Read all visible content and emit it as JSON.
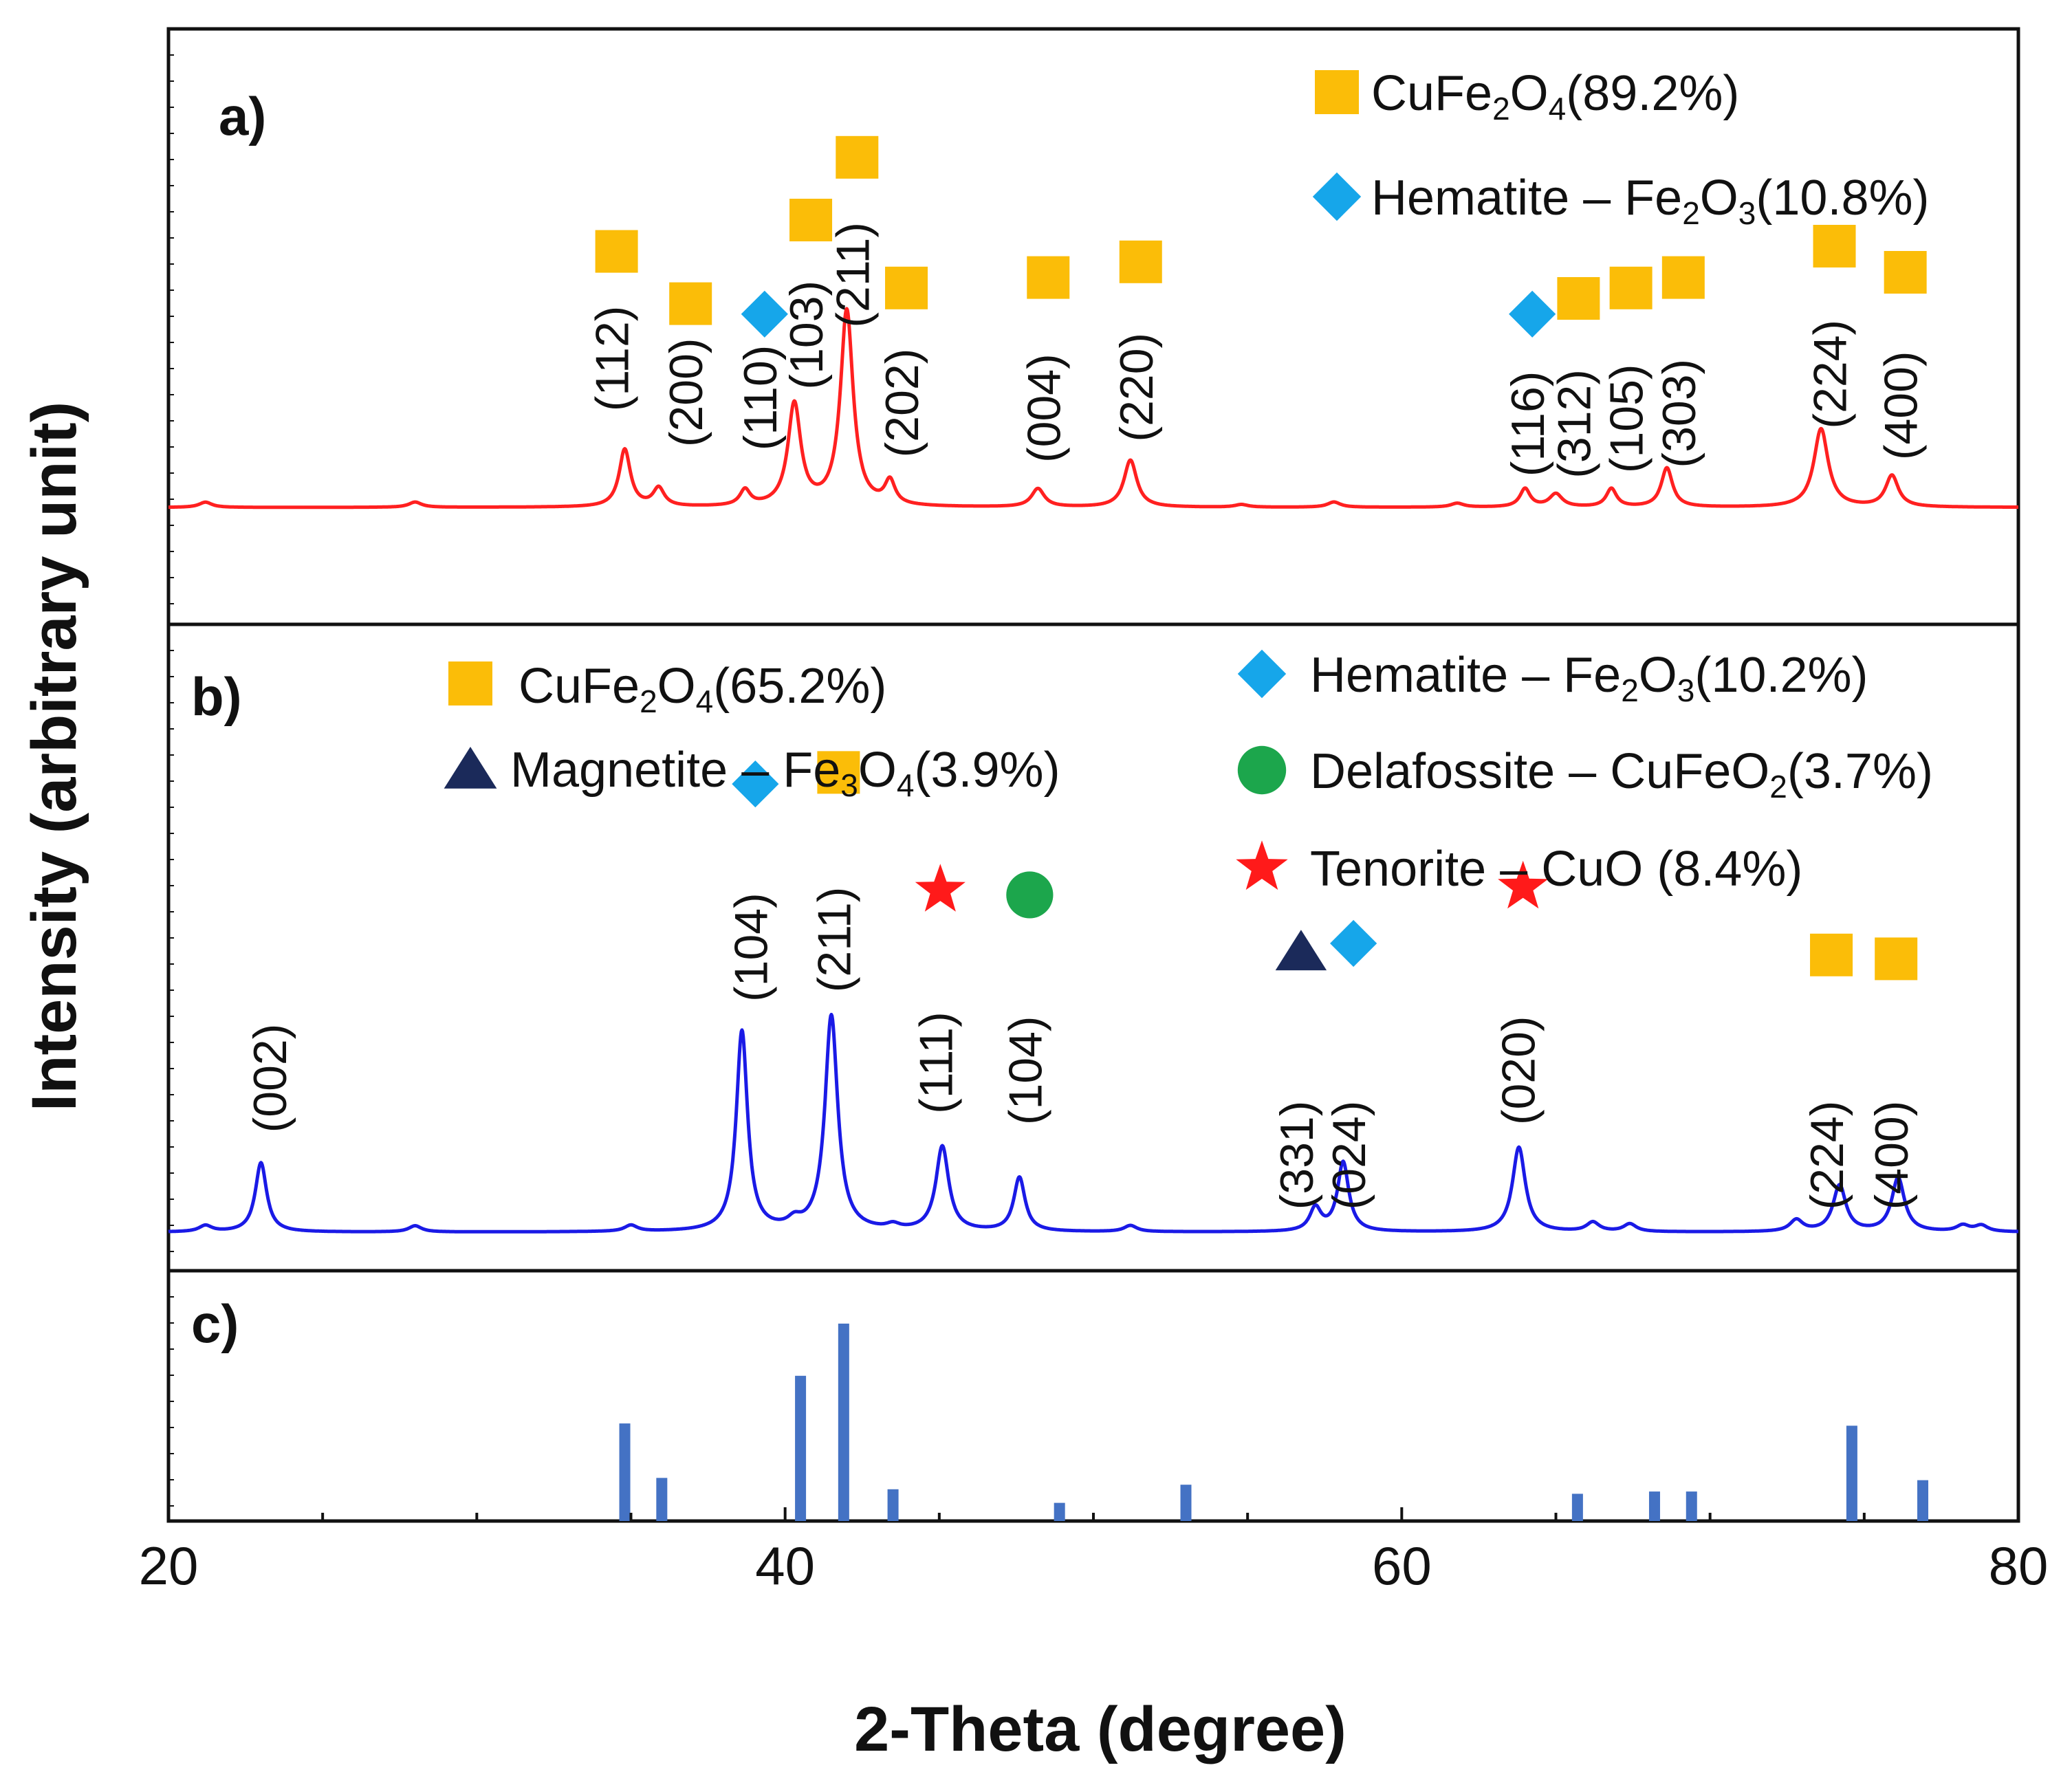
{
  "chart_data": {
    "type": "line",
    "xlabel": "2-Theta (degree)",
    "ylabel": "Intensity (arbitrary unit)",
    "xlim": [
      20,
      80
    ],
    "xticks": [
      20,
      40,
      60,
      80
    ],
    "colors": {
      "pattern_a": "#ff2020",
      "pattern_b": "#1a1ae6",
      "reference_bars": "#4472c4",
      "cufe2o4": "#fbbd08",
      "hematite": "#16a6ea",
      "magnetite": "#1b2a5a",
      "delafossite": "#1ca64c",
      "tenorite": "#ff1a1a"
    },
    "panels": [
      {
        "label": "a)",
        "legend": [
          {
            "marker": "square",
            "color": "#fbbd08",
            "name": "CuFe2O4",
            "parts": [
              [
                "CuFe",
                "n"
              ],
              [
                "2",
                "sub"
              ],
              [
                "O",
                "n"
              ],
              [
                "4",
                "sub"
              ],
              [
                "(89.2%)",
                "n"
              ]
            ]
          },
          {
            "marker": "diamond",
            "color": "#16a6ea",
            "name": "Hematite – Fe2O3",
            "parts": [
              [
                "Hematite – Fe",
                "n"
              ],
              [
                "2",
                "sub"
              ],
              [
                "O",
                "n"
              ],
              [
                "3",
                "sub"
              ],
              [
                "(10.8%)",
                "n"
              ]
            ]
          }
        ],
        "peaks": [
          {
            "x": 34.8,
            "h": 0.22,
            "w": 0.22,
            "hkl": "(112)",
            "phase": "square"
          },
          {
            "x": 35.9,
            "h": 0.07,
            "w": 0.22,
            "hkl": "(200)",
            "phase": "square"
          },
          {
            "x": 38.7,
            "h": 0.06,
            "w": 0.2,
            "hkl": "(110)",
            "phase": "diamond"
          },
          {
            "x": 40.3,
            "h": 0.39,
            "w": 0.25,
            "hkl": "(103)",
            "phase": "square"
          },
          {
            "x": 42.0,
            "h": 0.75,
            "w": 0.25,
            "hkl": "(211)",
            "phase": "square"
          },
          {
            "x": 43.4,
            "h": 0.09,
            "w": 0.2,
            "hkl": "(202)",
            "phase": "square"
          },
          {
            "x": 48.2,
            "h": 0.07,
            "w": 0.25,
            "hkl": "(004)",
            "phase": "square"
          },
          {
            "x": 51.2,
            "h": 0.18,
            "w": 0.25,
            "hkl": "(220)",
            "phase": "square"
          },
          {
            "x": 64.0,
            "h": 0.07,
            "w": 0.2,
            "hkl": "(116)",
            "phase": "diamond"
          },
          {
            "x": 65.0,
            "h": 0.05,
            "w": 0.25,
            "hkl": "(312)",
            "phase": "square"
          },
          {
            "x": 66.8,
            "h": 0.07,
            "w": 0.2,
            "hkl": "(105)",
            "phase": "square"
          },
          {
            "x": 68.6,
            "h": 0.15,
            "w": 0.22,
            "hkl": "(303)",
            "phase": "square"
          },
          {
            "x": 73.6,
            "h": 0.3,
            "w": 0.28,
            "hkl": "(224)",
            "phase": "square"
          },
          {
            "x": 75.9,
            "h": 0.12,
            "w": 0.25,
            "hkl": "(400)",
            "phase": "square"
          }
        ],
        "minor_peaks": [
          [
            21.2,
            0.02
          ],
          [
            28.0,
            0.02
          ],
          [
            54.8,
            0.01
          ],
          [
            57.8,
            0.02
          ],
          [
            61.8,
            0.015
          ]
        ],
        "annotations": [
          {
            "x": 34.4,
            "hkl": "(112)",
            "marker": "square",
            "label_y": 0.57,
            "marker_y": 0.98
          },
          {
            "x": 36.8,
            "hkl": "(200)",
            "marker": "square",
            "label_y": 0.44,
            "marker_y": 0.78
          },
          {
            "x": 39.2,
            "hkl": "(110)",
            "marker": "diamond",
            "label_y": 0.42,
            "marker_y": 0.74
          },
          {
            "x": 40.7,
            "hkl": "(103)",
            "marker": "square",
            "label_y": 0.66,
            "marker_y": 1.1
          },
          {
            "x": 42.2,
            "hkl": "(211)",
            "marker": "square",
            "label_y": 0.89,
            "marker_y": 1.34
          },
          {
            "x": 43.8,
            "hkl": "(202)",
            "marker": "square",
            "label_y": 0.4,
            "marker_y": 0.84
          },
          {
            "x": 48.4,
            "hkl": "(004)",
            "marker": "square",
            "label_y": 0.38,
            "marker_y": 0.88
          },
          {
            "x": 51.4,
            "hkl": "(220)",
            "marker": "square",
            "label_y": 0.46,
            "marker_y": 0.94
          },
          {
            "x": 64.1,
            "hkl": "(116)",
            "marker": "diamond",
            "label_y": 0.32,
            "marker_y": 0.74
          },
          {
            "x": 65.6,
            "hkl": "(312)",
            "marker": "square",
            "label_y": 0.32,
            "marker_y": 0.8
          },
          {
            "x": 67.3,
            "hkl": "(105)",
            "marker": "square",
            "label_y": 0.34,
            "marker_y": 0.84
          },
          {
            "x": 69.0,
            "hkl": "(303)",
            "marker": "square",
            "label_y": 0.36,
            "marker_y": 0.88
          },
          {
            "x": 73.9,
            "hkl": "(224)",
            "marker": "square",
            "label_y": 0.51,
            "marker_y": 1.0
          },
          {
            "x": 76.2,
            "hkl": "(400)",
            "marker": "square",
            "label_y": 0.39,
            "marker_y": 0.9
          }
        ]
      },
      {
        "label": "b)",
        "legend": [
          {
            "marker": "square",
            "color": "#fbbd08",
            "name": "CuFe2O4",
            "parts": [
              [
                "CuFe",
                "n"
              ],
              [
                "2",
                "sub"
              ],
              [
                "O",
                "n"
              ],
              [
                "4",
                "sub"
              ],
              [
                "(65.2%)",
                "n"
              ]
            ]
          },
          {
            "marker": "triangle",
            "color": "#1b2a5a",
            "name": "Magnetite – Fe3O4",
            "parts": [
              [
                "Magnetite – Fe",
                "n"
              ],
              [
                "3",
                "sub"
              ],
              [
                "O",
                "n"
              ],
              [
                "4",
                "sub"
              ],
              [
                "(3.9%)",
                "n"
              ]
            ]
          },
          {
            "marker": "diamond",
            "color": "#16a6ea",
            "name": "Hematite – Fe2O3",
            "parts": [
              [
                "Hematite – Fe",
                "n"
              ],
              [
                "2",
                "sub"
              ],
              [
                "O",
                "n"
              ],
              [
                "3",
                "sub"
              ],
              [
                "(10.2%)",
                "n"
              ]
            ]
          },
          {
            "marker": "circle",
            "color": "#1ca64c",
            "name": "Delafossite – CuFeO2",
            "parts": [
              [
                "Delafossite – CuFeO",
                "n"
              ],
              [
                "2",
                "sub"
              ],
              [
                "(3.7%)",
                "n"
              ]
            ]
          },
          {
            "marker": "star",
            "color": "#ff1a1a",
            "name": "Tenorite – CuO",
            "parts": [
              [
                "Tenorite – CuO (8.4%)",
                "n"
              ]
            ]
          }
        ],
        "peaks": [
          {
            "x": 23.0,
            "h": 0.09,
            "w": 0.22,
            "hkl": "(002)",
            "phase": "none"
          },
          {
            "x": 38.6,
            "h": 0.26,
            "w": 0.22,
            "hkl": "(104)",
            "phase": "diamond"
          },
          {
            "x": 41.5,
            "h": 0.28,
            "w": 0.25,
            "hkl": "(211)",
            "phase": "square"
          },
          {
            "x": 45.1,
            "h": 0.11,
            "w": 0.25,
            "hkl": "(111)",
            "phase": "star"
          },
          {
            "x": 47.6,
            "h": 0.07,
            "w": 0.22,
            "hkl": "(104)",
            "phase": "circle"
          },
          {
            "x": 57.2,
            "h": 0.03,
            "w": 0.22,
            "hkl": "(331)",
            "phase": "triangle"
          },
          {
            "x": 58.1,
            "h": 0.09,
            "w": 0.22,
            "hkl": "(024)",
            "phase": "diamond"
          },
          {
            "x": 63.8,
            "h": 0.11,
            "w": 0.25,
            "hkl": "(020)",
            "phase": "star"
          },
          {
            "x": 74.2,
            "h": 0.06,
            "w": 0.25,
            "hkl": "(224)",
            "phase": "square"
          },
          {
            "x": 76.1,
            "h": 0.07,
            "w": 0.25,
            "hkl": "(400)",
            "phase": "square"
          }
        ],
        "minor_peaks": [
          [
            21.2,
            0.008
          ],
          [
            28.0,
            0.008
          ],
          [
            35.0,
            0.008
          ],
          [
            40.3,
            0.01
          ],
          [
            43.5,
            0.006
          ],
          [
            51.2,
            0.008
          ],
          [
            66.2,
            0.012
          ],
          [
            67.4,
            0.01
          ],
          [
            72.8,
            0.015
          ],
          [
            78.2,
            0.008
          ],
          [
            78.8,
            0.008
          ]
        ],
        "annotations": [
          {
            "x": 23.3,
            "hkl": "(002)",
            "marker": "none",
            "label_y": 0.2,
            "marker_y": 0
          },
          {
            "x": 38.9,
            "hkl": "(104)",
            "marker": "diamond",
            "label_y": 0.37,
            "marker_y": 0.582
          },
          {
            "x": 41.6,
            "hkl": "(211)",
            "marker": "square",
            "label_y": 0.38,
            "marker_y": 0.597
          },
          {
            "x": 44.9,
            "hkl": "(111)",
            "marker": "star",
            "label_y": 0.22,
            "marker_y": 0.444
          },
          {
            "x": 47.8,
            "hkl": "(104)",
            "marker": "circle",
            "label_y": 0.21,
            "marker_y": 0.438
          },
          {
            "x": 56.6,
            "hkl": "(331)",
            "marker": "triangle",
            "label_y": 0.1,
            "marker_y": 0.365
          },
          {
            "x": 58.3,
            "hkl": "(024)",
            "marker": "diamond",
            "label_y": 0.1,
            "marker_y": 0.375
          },
          {
            "x": 63.8,
            "hkl": "(020)",
            "marker": "star",
            "label_y": 0.21,
            "marker_y": 0.448
          },
          {
            "x": 73.8,
            "hkl": "(224)",
            "marker": "square",
            "label_y": 0.1,
            "marker_y": 0.36
          },
          {
            "x": 75.9,
            "hkl": "(400)",
            "marker": "square",
            "label_y": 0.1,
            "marker_y": 0.355
          }
        ]
      },
      {
        "label": "c)",
        "reference_lines": [
          {
            "x": 34.8,
            "h": 0.43
          },
          {
            "x": 36.0,
            "h": 0.19
          },
          {
            "x": 40.5,
            "h": 0.64
          },
          {
            "x": 41.9,
            "h": 0.87
          },
          {
            "x": 43.5,
            "h": 0.14
          },
          {
            "x": 48.9,
            "h": 0.08
          },
          {
            "x": 53.0,
            "h": 0.16
          },
          {
            "x": 65.7,
            "h": 0.12
          },
          {
            "x": 68.2,
            "h": 0.13
          },
          {
            "x": 69.4,
            "h": 0.13
          },
          {
            "x": 74.6,
            "h": 0.42
          },
          {
            "x": 76.9,
            "h": 0.18
          }
        ]
      }
    ]
  }
}
